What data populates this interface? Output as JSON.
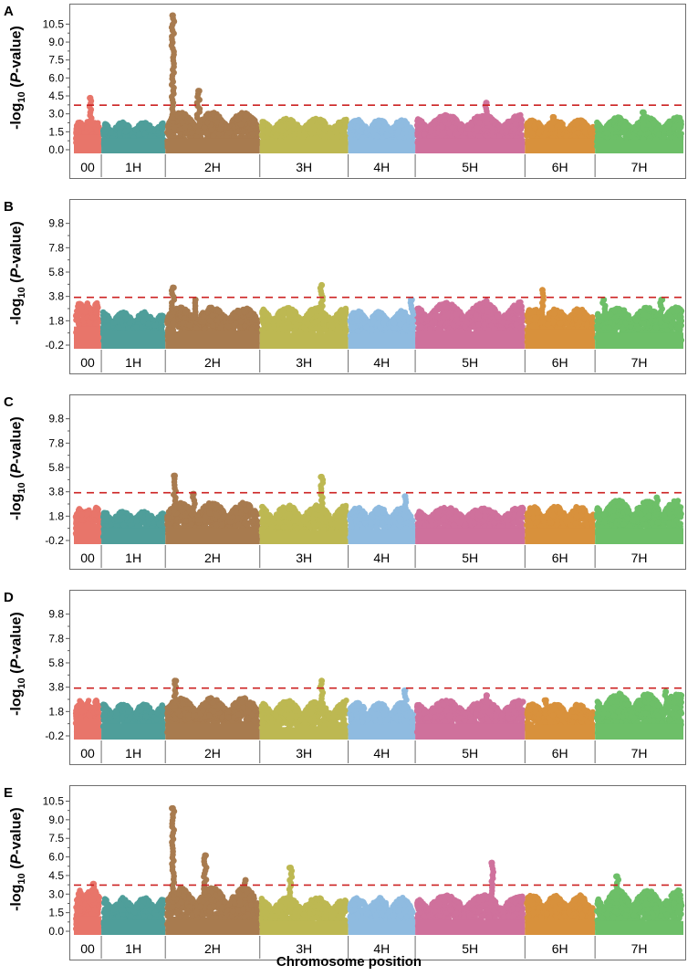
{
  "figure": {
    "x_axis_title": "Chromosome position",
    "y_axis_prefix": "-log",
    "y_axis_sub": "10",
    "y_axis_open": " (",
    "y_axis_italic": "P",
    "y_axis_suffix": "-value)",
    "chromosomes": [
      "00",
      "1H",
      "2H",
      "3H",
      "4H",
      "5H",
      "6H",
      "7H"
    ],
    "chromosome_colors": [
      "#e8756a",
      "#4f9e9a",
      "#a87b4f",
      "#bdb852",
      "#8fbbe0",
      "#cf719c",
      "#d8913c",
      "#6dbf68"
    ],
    "chromosome_widths": [
      4.5,
      10.5,
      15.5,
      14.5,
      11,
      18,
      11.5,
      14.5
    ],
    "threshold": 3.8,
    "threshold_color": "#cc2222"
  },
  "chart_data": [
    {
      "type": "scatter",
      "panel": "A",
      "ylim": [
        0,
        11.6
      ],
      "yticks": [
        "0.0",
        "1.5",
        "3.0",
        "4.5",
        "6.0",
        "7.5",
        "9.0",
        "10.5"
      ],
      "ytick_values": [
        0,
        1.5,
        3,
        4.5,
        6,
        7.5,
        9,
        10.5
      ],
      "baseline": [
        1.3,
        1.0,
        1.0,
        0.9,
        0.9,
        1.0,
        1.0,
        0.9
      ],
      "bulk_max": [
        2.5,
        2.4,
        3.2,
        2.7,
        2.6,
        3.0,
        2.6,
        2.8
      ],
      "peaks": [
        {
          "chrom": "00",
          "pos": 0.6,
          "value": 4.4
        },
        {
          "chrom": "2H",
          "pos": 0.08,
          "value": 11.3
        },
        {
          "chrom": "2H",
          "pos": 0.35,
          "value": 5.0
        },
        {
          "chrom": "5H",
          "pos": 0.65,
          "value": 4.0
        },
        {
          "chrom": "6H",
          "pos": 0.4,
          "value": 2.8
        },
        {
          "chrom": "7H",
          "pos": 0.55,
          "value": 3.2
        }
      ]
    },
    {
      "type": "scatter",
      "panel": "B",
      "ylim": [
        -0.2,
        11.2
      ],
      "yticks": [
        "-0.2",
        "1.8",
        "3.8",
        "5.8",
        "7.8",
        "9.8"
      ],
      "ytick_values": [
        -0.2,
        1.8,
        3.8,
        5.8,
        7.8,
        9.8
      ],
      "baseline": [
        1.4,
        1.0,
        1.0,
        0.9,
        0.8,
        1.0,
        1.2,
        0.9
      ],
      "bulk_max": [
        3.4,
        2.6,
        3.0,
        3.0,
        2.7,
        3.4,
        2.9,
        3.0
      ],
      "peaks": [
        {
          "chrom": "2H",
          "pos": 0.08,
          "value": 4.6
        },
        {
          "chrom": "2H",
          "pos": 0.32,
          "value": 3.6
        },
        {
          "chrom": "3H",
          "pos": 0.7,
          "value": 4.8
        },
        {
          "chrom": "4H",
          "pos": 0.95,
          "value": 3.6
        },
        {
          "chrom": "5H",
          "pos": 0.65,
          "value": 3.5
        },
        {
          "chrom": "6H",
          "pos": 0.25,
          "value": 4.4
        },
        {
          "chrom": "7H",
          "pos": 0.1,
          "value": 3.6
        },
        {
          "chrom": "7H",
          "pos": 0.75,
          "value": 3.6
        }
      ]
    },
    {
      "type": "scatter",
      "panel": "C",
      "ylim": [
        -0.2,
        11.2
      ],
      "yticks": [
        "-0.2",
        "1.8",
        "3.8",
        "5.8",
        "7.8",
        "9.8"
      ],
      "ytick_values": [
        -0.2,
        1.8,
        3.8,
        5.8,
        7.8,
        9.8
      ],
      "baseline": [
        1.2,
        0.9,
        0.9,
        0.6,
        0.8,
        0.9,
        0.9,
        0.9
      ],
      "bulk_max": [
        2.6,
        2.3,
        3.0,
        2.8,
        2.6,
        2.6,
        2.7,
        3.2
      ],
      "peaks": [
        {
          "chrom": "2H",
          "pos": 0.1,
          "value": 5.2
        },
        {
          "chrom": "2H",
          "pos": 0.3,
          "value": 3.7
        },
        {
          "chrom": "3H",
          "pos": 0.7,
          "value": 5.1
        },
        {
          "chrom": "4H",
          "pos": 0.85,
          "value": 3.5
        },
        {
          "chrom": "7H",
          "pos": 0.7,
          "value": 3.4
        }
      ]
    },
    {
      "type": "scatter",
      "panel": "D",
      "ylim": [
        -0.2,
        11.2
      ],
      "yticks": [
        "-0.2",
        "1.8",
        "3.8",
        "5.8",
        "7.8",
        "9.8"
      ],
      "ytick_values": [
        -0.2,
        1.8,
        3.8,
        5.8,
        7.8,
        9.8
      ],
      "baseline": [
        1.2,
        0.9,
        0.9,
        0.6,
        0.8,
        0.9,
        0.8,
        0.9
      ],
      "bulk_max": [
        2.8,
        2.5,
        3.0,
        2.8,
        2.6,
        2.8,
        2.5,
        3.4
      ],
      "peaks": [
        {
          "chrom": "2H",
          "pos": 0.1,
          "value": 4.4
        },
        {
          "chrom": "3H",
          "pos": 0.7,
          "value": 4.4
        },
        {
          "chrom": "4H",
          "pos": 0.85,
          "value": 3.6
        },
        {
          "chrom": "5H",
          "pos": 0.65,
          "value": 3.2
        },
        {
          "chrom": "6H",
          "pos": 0.3,
          "value": 2.8
        },
        {
          "chrom": "7H",
          "pos": 0.8,
          "value": 3.5
        }
      ]
    },
    {
      "type": "scatter",
      "panel": "E",
      "ylim": [
        0,
        11.2
      ],
      "yticks": [
        "0.0",
        "1.5",
        "3.0",
        "4.5",
        "6.0",
        "7.5",
        "9.0",
        "10.5"
      ],
      "ytick_values": [
        0,
        1.5,
        3,
        4.5,
        6,
        7.5,
        9,
        10.5
      ],
      "baseline": [
        1.3,
        1.0,
        1.0,
        0.9,
        0.9,
        1.0,
        1.0,
        0.9
      ],
      "bulk_max": [
        3.4,
        2.8,
        3.6,
        2.8,
        2.8,
        3.0,
        3.0,
        3.4
      ],
      "peaks": [
        {
          "chrom": "00",
          "pos": 0.7,
          "value": 3.9
        },
        {
          "chrom": "2H",
          "pos": 0.08,
          "value": 10.0
        },
        {
          "chrom": "2H",
          "pos": 0.42,
          "value": 6.2
        },
        {
          "chrom": "2H",
          "pos": 0.85,
          "value": 4.2
        },
        {
          "chrom": "3H",
          "pos": 0.35,
          "value": 5.2
        },
        {
          "chrom": "5H",
          "pos": 0.7,
          "value": 5.6
        },
        {
          "chrom": "7H",
          "pos": 0.25,
          "value": 4.5
        }
      ]
    }
  ]
}
